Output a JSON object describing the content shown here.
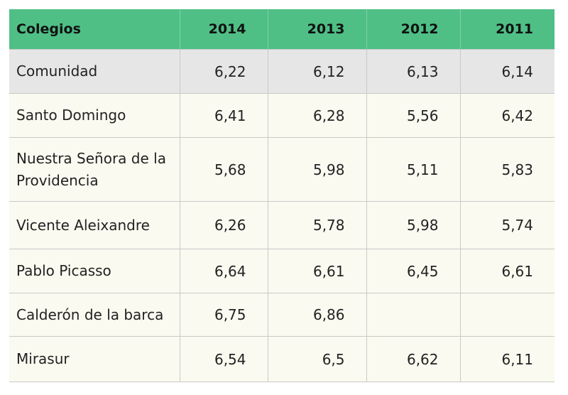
{
  "table": {
    "headers": [
      "Colegios",
      "2014",
      "2013",
      "2012",
      "2011"
    ],
    "rows": [
      {
        "name": "Comunidad",
        "values": [
          "6,22",
          "6,12",
          "6,13",
          "6,14"
        ]
      },
      {
        "name": "Santo Domingo",
        "values": [
          "6,41",
          "6,28",
          "5,56",
          "6,42"
        ]
      },
      {
        "name": "Nuestra Señora de la Providencia",
        "values": [
          "5,68",
          "5,98",
          "5,11",
          "5,83"
        ]
      },
      {
        "name": "Vicente Aleixandre",
        "values": [
          "6,26",
          "5,78",
          "5,98",
          "5,74"
        ]
      },
      {
        "name": "Pablo Picasso",
        "values": [
          "6,64",
          "6,61",
          "6,45",
          "6,61"
        ]
      },
      {
        "name": "Calderón de la barca",
        "values": [
          "6,75",
          "6,86",
          "",
          ""
        ]
      },
      {
        "name": "Mirasur",
        "values": [
          "6,54",
          "6,5",
          "6,62",
          "6,11"
        ]
      }
    ]
  },
  "colors": {
    "header_bg": "#4fbf86",
    "highlight_row_bg": "#e6e6e6",
    "row_bg": "#fafaf0"
  }
}
